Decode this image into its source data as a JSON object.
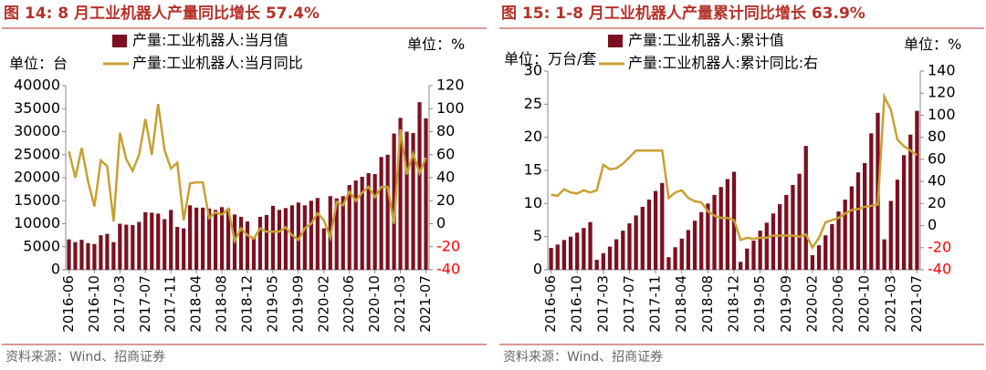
{
  "chart_data": [
    {
      "type": "combo",
      "title": "图 14:  8 月工业机器人产量同比增长 57.4%",
      "unit_left": "单位：台",
      "unit_right": "单位：%",
      "source": "资料来源：Wind、招商证券",
      "categories": [
        "2016-06",
        null,
        null,
        null,
        "2016-10",
        null,
        null,
        null,
        "2017-03",
        null,
        null,
        null,
        "2017-07",
        null,
        null,
        null,
        "2017-11",
        null,
        null,
        null,
        "2018-04",
        null,
        null,
        null,
        "2018-08",
        null,
        null,
        null,
        "2018-12",
        null,
        null,
        null,
        "2019-05",
        null,
        null,
        null,
        "2019-09",
        null,
        null,
        null,
        "2020-02",
        null,
        null,
        null,
        "2020-06",
        null,
        null,
        null,
        "2020-10",
        null,
        null,
        null,
        "2021-03",
        null,
        null,
        null,
        "2021-07"
      ],
      "series": [
        {
          "name": "产量:工业机器人:当月值",
          "color": "#7b1020",
          "axis": "y",
          "values": [
            6600,
            6000,
            6500,
            5800,
            5600,
            7500,
            7800,
            6000,
            10000,
            9800,
            9700,
            10400,
            12500,
            12400,
            12200,
            11000,
            13000,
            9300,
            9000,
            14000,
            13500,
            13500,
            13300,
            13000,
            13600,
            13300,
            12000,
            11500,
            10500,
            7000,
            11500,
            11900,
            13900,
            13000,
            13400,
            14000,
            14600,
            14000,
            15000,
            15600,
            9000,
            16000,
            15500,
            16000,
            18400,
            19400,
            20200,
            21000,
            20800,
            24500,
            25000,
            29600,
            33000,
            30000,
            29700,
            36400,
            32900
          ]
        },
        {
          "name": "产量:工业机器人:当月同比",
          "color": "#c8a032",
          "axis": "y2",
          "values": [
            63,
            40,
            66,
            37,
            15,
            55,
            50,
            2,
            79,
            56,
            46,
            60,
            91,
            60,
            104,
            64,
            48,
            53,
            3,
            35,
            36,
            36,
            5,
            10,
            8,
            13,
            -15,
            -4,
            -10,
            -13,
            -4,
            -7,
            -7,
            -7,
            -3,
            -10,
            -14,
            -4,
            0,
            9,
            3,
            -12,
            19,
            16,
            28,
            20,
            27,
            32,
            23,
            32,
            32,
            0,
            82,
            43,
            61,
            44,
            57.4
          ]
        }
      ],
      "ylim": [
        0,
        40000
      ],
      "yticks": [
        0,
        5000,
        10000,
        15000,
        20000,
        25000,
        30000,
        35000,
        40000
      ],
      "y2lim": [
        -40,
        120
      ],
      "y2ticks": [
        -40,
        -20,
        0,
        20,
        40,
        60,
        80,
        100,
        120
      ],
      "negative_tick_color": "#ff0000",
      "grid": false
    },
    {
      "type": "combo",
      "title": "图 15:  1-8 月工业机器人产量累计同比增长 63.9%",
      "unit_left": "单位：万台/套",
      "unit_right": "单位：%",
      "source": "资料来源：Wind、招商证券",
      "categories": [
        "2016-06",
        null,
        null,
        null,
        "2016-10",
        null,
        null,
        null,
        "2017-03",
        null,
        null,
        null,
        "2017-07",
        null,
        null,
        null,
        "2017-11",
        null,
        null,
        null,
        "2018-04",
        null,
        null,
        null,
        "2018-08",
        null,
        null,
        null,
        "2018-12",
        null,
        null,
        null,
        "2019-05",
        null,
        null,
        null,
        "2019-09",
        null,
        null,
        null,
        "2020-02",
        null,
        null,
        null,
        "2020-06",
        null,
        null,
        null,
        "2020-10",
        null,
        null,
        null,
        "2021-03",
        null,
        null,
        null,
        "2021-07"
      ],
      "series": [
        {
          "name": "产量:工业机器人:累计值",
          "color": "#7b1020",
          "axis": "y",
          "values": [
            3.3,
            3.8,
            4.5,
            5.0,
            5.6,
            6.3,
            7.2,
            1.5,
            2.5,
            3.5,
            4.6,
            5.9,
            7.0,
            8.2,
            9.5,
            10.6,
            11.9,
            13.1,
            1.9,
            3.4,
            4.7,
            6.0,
            7.4,
            8.7,
            10.0,
            11.3,
            12.5,
            13.7,
            14.8,
            1.2,
            3.2,
            4.4,
            5.9,
            7.1,
            8.5,
            9.9,
            11.3,
            12.8,
            14.5,
            18.7,
            2.2,
            3.7,
            5.2,
            6.9,
            8.8,
            10.6,
            12.6,
            14.7,
            16.1,
            20.6,
            23.7,
            4.6,
            10.4,
            13.6,
            17.3,
            20.4,
            24.0
          ]
        },
        {
          "name": "产量:工业机器人:累计同比:右",
          "color": "#c8a032",
          "axis": "y2",
          "values": [
            28,
            27,
            33,
            30,
            29,
            32,
            30,
            32,
            55,
            51,
            52,
            56,
            62,
            68,
            68,
            68,
            68,
            68,
            25,
            30,
            32,
            25,
            22,
            21,
            13,
            9,
            7,
            7,
            5,
            -13,
            -11,
            -12,
            -11,
            -11,
            -9,
            -9,
            -9,
            -9,
            -10,
            -8,
            -20,
            -11,
            3,
            5,
            7,
            11,
            14,
            15,
            17,
            18,
            19,
            117,
            105,
            78,
            72,
            68,
            63.9
          ]
        }
      ],
      "ylim": [
        0,
        30
      ],
      "yticks": [
        0,
        5,
        10,
        15,
        20,
        25,
        30
      ],
      "y2lim": [
        -40,
        140
      ],
      "y2ticks": [
        -40,
        -20,
        0,
        20,
        40,
        60,
        80,
        100,
        120,
        140
      ],
      "negative_tick_color": "#ff0000",
      "grid": false
    }
  ]
}
